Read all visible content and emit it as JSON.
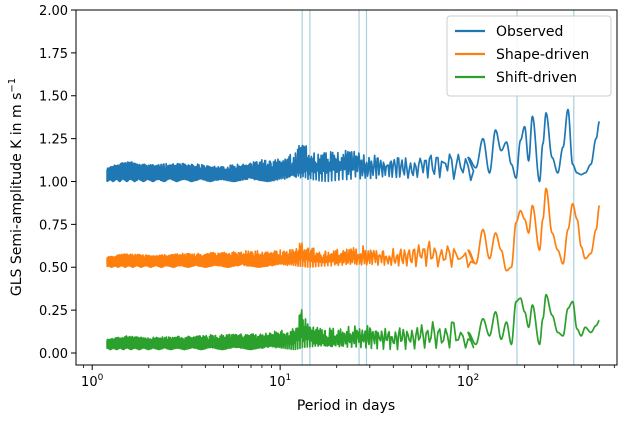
{
  "chart_data": {
    "type": "line",
    "title": "",
    "xlabel": "Period in days",
    "ylabel": "GLS Semi-amplitude K in m s",
    "ylabel_superscript": "−1",
    "x_scale": "log",
    "xlim": [
      0.82,
      620
    ],
    "ylim": [
      -0.07,
      2.0
    ],
    "x_ticks": [
      {
        "value": 1,
        "base": "10",
        "exp": "0"
      },
      {
        "value": 10,
        "base": "10",
        "exp": "1"
      },
      {
        "value": 100,
        "base": "10",
        "exp": "2"
      }
    ],
    "y_ticks": [
      {
        "value": 0.0,
        "label": "0.00"
      },
      {
        "value": 0.25,
        "label": "0.25"
      },
      {
        "value": 0.5,
        "label": "0.50"
      },
      {
        "value": 0.75,
        "label": "0.75"
      },
      {
        "value": 1.0,
        "label": "1.00"
      },
      {
        "value": 1.25,
        "label": "1.25"
      },
      {
        "value": 1.5,
        "label": "1.50"
      },
      {
        "value": 1.75,
        "label": "1.75"
      },
      {
        "value": 2.0,
        "label": "2.00"
      }
    ],
    "grid": false,
    "legend_position": "top-right",
    "vertical_lines": {
      "color": "#a8d0e0",
      "x": [
        13.1,
        14.4,
        26.3,
        28.8,
        182,
        365
      ]
    },
    "series": [
      {
        "name": "Observed",
        "color": "#1f77b4",
        "baseline": 1.0,
        "x": [
          1.2,
          1.5,
          2,
          3,
          5,
          8,
          10,
          12,
          13,
          14,
          16,
          20,
          25,
          30,
          40,
          50,
          60,
          70,
          80,
          90,
          100,
          110,
          120,
          130,
          140,
          150,
          160,
          170,
          180,
          190,
          200,
          210,
          220,
          240,
          250,
          260,
          280,
          300,
          320,
          340,
          360,
          380,
          400,
          420,
          450,
          480,
          500
        ],
        "y": [
          1.08,
          1.12,
          1.1,
          1.11,
          1.09,
          1.13,
          1.14,
          1.18,
          1.25,
          1.2,
          1.17,
          1.18,
          1.22,
          1.16,
          1.17,
          1.15,
          1.2,
          1.18,
          1.22,
          1.17,
          1.14,
          1.08,
          1.25,
          1.05,
          1.3,
          1.18,
          1.23,
          1.1,
          1.02,
          1.24,
          1.32,
          1.12,
          1.38,
          1.0,
          1.22,
          1.4,
          1.14,
          1.05,
          1.2,
          1.42,
          1.1,
          1.05,
          1.04,
          1.05,
          1.1,
          1.25,
          1.35
        ]
      },
      {
        "name": "Shape-driven",
        "color": "#ff7f0e",
        "baseline": 0.5,
        "x": [
          1.2,
          1.5,
          2,
          3,
          5,
          8,
          10,
          12,
          13,
          14,
          16,
          20,
          25,
          30,
          40,
          50,
          60,
          70,
          80,
          90,
          100,
          110,
          120,
          130,
          140,
          150,
          160,
          170,
          180,
          190,
          200,
          210,
          220,
          240,
          250,
          260,
          280,
          300,
          320,
          340,
          360,
          380,
          400,
          420,
          450,
          480,
          500
        ],
        "y": [
          0.56,
          0.58,
          0.57,
          0.58,
          0.59,
          0.6,
          0.6,
          0.62,
          0.66,
          0.64,
          0.6,
          0.61,
          0.63,
          0.62,
          0.61,
          0.62,
          0.66,
          0.64,
          0.67,
          0.63,
          0.6,
          0.52,
          0.72,
          0.55,
          0.7,
          0.6,
          0.48,
          0.5,
          0.76,
          0.83,
          0.78,
          0.7,
          0.86,
          0.6,
          0.78,
          0.96,
          0.7,
          0.6,
          0.52,
          0.72,
          0.87,
          0.78,
          0.62,
          0.55,
          0.58,
          0.72,
          0.86
        ]
      },
      {
        "name": "Shift-driven",
        "color": "#2ca02c",
        "baseline": 0.02,
        "x": [
          1.2,
          1.5,
          2,
          3,
          5,
          8,
          10,
          12,
          13,
          14,
          16,
          20,
          25,
          30,
          40,
          50,
          60,
          70,
          80,
          90,
          100,
          110,
          120,
          130,
          140,
          150,
          160,
          170,
          180,
          190,
          200,
          210,
          220,
          240,
          250,
          260,
          280,
          300,
          320,
          340,
          360,
          380,
          400,
          420,
          450,
          480,
          500
        ],
        "y": [
          0.08,
          0.1,
          0.09,
          0.1,
          0.11,
          0.12,
          0.13,
          0.15,
          0.28,
          0.2,
          0.16,
          0.14,
          0.18,
          0.16,
          0.15,
          0.16,
          0.2,
          0.18,
          0.22,
          0.17,
          0.12,
          0.05,
          0.2,
          0.1,
          0.24,
          0.08,
          0.18,
          0.05,
          0.3,
          0.32,
          0.24,
          0.15,
          0.28,
          0.05,
          0.2,
          0.34,
          0.22,
          0.12,
          0.1,
          0.26,
          0.3,
          0.14,
          0.1,
          0.15,
          0.12,
          0.16,
          0.19
        ]
      }
    ]
  }
}
